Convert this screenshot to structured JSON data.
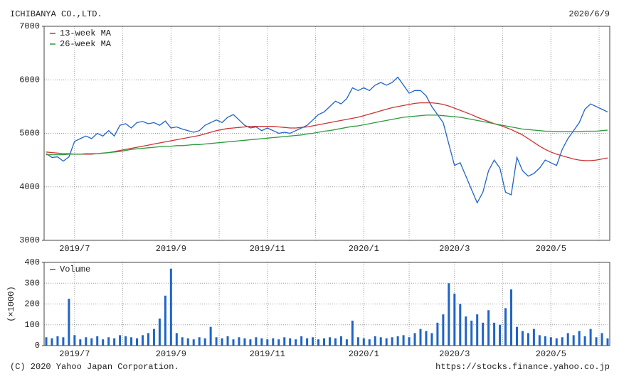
{
  "header": {
    "title": "ICHIBANYA CO.,LTD.",
    "date": "2020/6/9"
  },
  "footer": {
    "copyright": "(C) 2020 Yahoo Japan Corporation.",
    "url": "https://stocks.finance.yahoo.co.jp"
  },
  "chart_data": [
    {
      "type": "line",
      "legend": "upper left",
      "grid": true,
      "categories": [
        null,
        null,
        null,
        null,
        null,
        "2019/7",
        null,
        null,
        null,
        null,
        null,
        null,
        null,
        null,
        null,
        null,
        null,
        null,
        null,
        null,
        null,
        null,
        "2019/9",
        null,
        null,
        null,
        null,
        null,
        null,
        null,
        null,
        null,
        null,
        null,
        null,
        null,
        null,
        null,
        null,
        "2019/11",
        null,
        null,
        null,
        null,
        null,
        null,
        null,
        null,
        null,
        null,
        null,
        null,
        null,
        null,
        null,
        null,
        "2020/1",
        null,
        null,
        null,
        null,
        null,
        null,
        null,
        null,
        null,
        null,
        null,
        null,
        null,
        null,
        null,
        "2020/3",
        null,
        null,
        null,
        null,
        null,
        null,
        null,
        null,
        null,
        null,
        null,
        null,
        null,
        null,
        null,
        null,
        "2020/5",
        null,
        null,
        null,
        null,
        null,
        null,
        null,
        null,
        null,
        null
      ],
      "ylim": [
        3000,
        7000
      ],
      "yticks": [
        3000,
        4000,
        5000,
        6000,
        7000
      ],
      "series": [
        {
          "color": "#1f64c8",
          "values": [
            4620,
            4550,
            4560,
            4480,
            4560,
            4850,
            4900,
            4950,
            4900,
            5000,
            4950,
            5050,
            4950,
            5150,
            5180,
            5100,
            5200,
            5220,
            5180,
            5200,
            5150,
            5230,
            5100,
            5120,
            5080,
            5050,
            5020,
            5050,
            5150,
            5200,
            5250,
            5200,
            5300,
            5350,
            5250,
            5150,
            5100,
            5120,
            5050,
            5100,
            5050,
            5000,
            5020,
            5000,
            5050,
            5100,
            5150,
            5250,
            5350,
            5400,
            5500,
            5600,
            5550,
            5650,
            5850,
            5800,
            5850,
            5800,
            5900,
            5950,
            5900,
            5950,
            6050,
            5900,
            5750,
            5800,
            5800,
            5700,
            5500,
            5350,
            5200,
            4800,
            4400,
            4450,
            4200,
            3950,
            3700,
            3900,
            4300,
            4500,
            4350,
            3900,
            3850,
            4550,
            4300,
            4200,
            4250,
            4350,
            4500,
            4450,
            4400,
            4700,
            4900,
            5050,
            5200,
            5450,
            5550,
            5500,
            5450,
            5400
          ]
        },
        {
          "name": "13-week MA",
          "color": "#cc3333",
          "values": [
            4650,
            4640,
            4630,
            4620,
            4620,
            4610,
            4610,
            4610,
            4610,
            4620,
            4630,
            4640,
            4660,
            4680,
            4700,
            4720,
            4740,
            4760,
            4780,
            4800,
            4820,
            4840,
            4860,
            4880,
            4900,
            4920,
            4940,
            4960,
            4990,
            5020,
            5050,
            5070,
            5090,
            5100,
            5110,
            5120,
            5130,
            5130,
            5130,
            5130,
            5130,
            5120,
            5110,
            5100,
            5100,
            5110,
            5120,
            5140,
            5160,
            5180,
            5200,
            5220,
            5240,
            5260,
            5280,
            5300,
            5330,
            5360,
            5390,
            5420,
            5450,
            5480,
            5500,
            5520,
            5540,
            5560,
            5570,
            5570,
            5570,
            5560,
            5540,
            5510,
            5470,
            5430,
            5390,
            5350,
            5300,
            5260,
            5220,
            5180,
            5150,
            5110,
            5070,
            5020,
            4970,
            4900,
            4830,
            4760,
            4700,
            4650,
            4610,
            4580,
            4550,
            4520,
            4500,
            4490,
            4490,
            4500,
            4520,
            4540
          ]
        },
        {
          "name": "26-week MA",
          "color": "#2e9a3e",
          "values": [
            4600,
            4600,
            4600,
            4600,
            4610,
            4610,
            4610,
            4620,
            4620,
            4620,
            4630,
            4640,
            4650,
            4660,
            4680,
            4700,
            4710,
            4720,
            4730,
            4740,
            4750,
            4760,
            4760,
            4770,
            4770,
            4780,
            4790,
            4790,
            4800,
            4810,
            4820,
            4830,
            4840,
            4850,
            4860,
            4870,
            4880,
            4890,
            4900,
            4910,
            4920,
            4930,
            4940,
            4950,
            4960,
            4970,
            4990,
            5000,
            5020,
            5040,
            5050,
            5070,
            5090,
            5110,
            5130,
            5140,
            5160,
            5180,
            5200,
            5220,
            5240,
            5260,
            5280,
            5300,
            5310,
            5320,
            5330,
            5340,
            5340,
            5340,
            5330,
            5320,
            5310,
            5300,
            5280,
            5260,
            5240,
            5220,
            5200,
            5180,
            5160,
            5140,
            5120,
            5100,
            5080,
            5070,
            5060,
            5050,
            5040,
            5040,
            5030,
            5030,
            5030,
            5030,
            5030,
            5040,
            5040,
            5040,
            5050,
            5060
          ]
        }
      ]
    },
    {
      "type": "bar",
      "legend": "upper left",
      "grid": true,
      "ylabel": "(×1000)",
      "categories": [
        null,
        null,
        null,
        null,
        null,
        "2019/7",
        null,
        null,
        null,
        null,
        null,
        null,
        null,
        null,
        null,
        null,
        null,
        null,
        null,
        null,
        null,
        null,
        "2019/9",
        null,
        null,
        null,
        null,
        null,
        null,
        null,
        null,
        null,
        null,
        null,
        null,
        null,
        null,
        null,
        null,
        "2019/11",
        null,
        null,
        null,
        null,
        null,
        null,
        null,
        null,
        null,
        null,
        null,
        null,
        null,
        null,
        null,
        null,
        "2020/1",
        null,
        null,
        null,
        null,
        null,
        null,
        null,
        null,
        null,
        null,
        null,
        null,
        null,
        null,
        null,
        "2020/3",
        null,
        null,
        null,
        null,
        null,
        null,
        null,
        null,
        null,
        null,
        null,
        null,
        null,
        null,
        null,
        null,
        "2020/5",
        null,
        null,
        null,
        null,
        null,
        null,
        null,
        null,
        null,
        null
      ],
      "ylim": [
        0,
        400
      ],
      "yticks": [
        0,
        100,
        200,
        300,
        400
      ],
      "series": [
        {
          "name": "Volume",
          "color": "#1f64c8",
          "values": [
            40,
            35,
            45,
            40,
            225,
            50,
            30,
            40,
            35,
            45,
            30,
            40,
            35,
            50,
            45,
            40,
            35,
            50,
            60,
            80,
            130,
            240,
            370,
            60,
            40,
            35,
            30,
            40,
            35,
            90,
            40,
            35,
            45,
            30,
            40,
            35,
            30,
            40,
            35,
            30,
            35,
            30,
            40,
            35,
            30,
            45,
            35,
            40,
            30,
            35,
            40,
            35,
            45,
            30,
            120,
            40,
            35,
            30,
            45,
            40,
            35,
            40,
            45,
            50,
            40,
            60,
            80,
            70,
            60,
            110,
            150,
            300,
            250,
            200,
            140,
            120,
            150,
            110,
            170,
            110,
            100,
            180,
            270,
            90,
            70,
            60,
            80,
            50,
            45,
            40,
            35,
            40,
            60,
            50,
            70,
            45,
            80,
            40,
            60,
            35
          ]
        }
      ]
    }
  ]
}
